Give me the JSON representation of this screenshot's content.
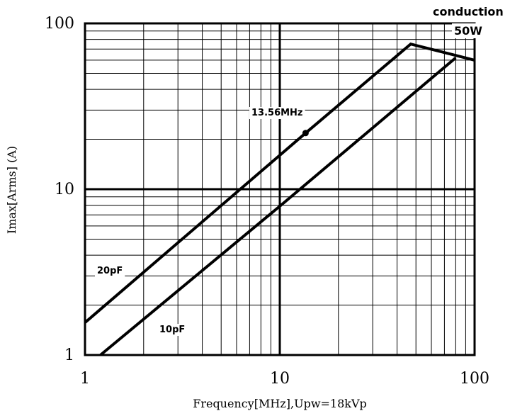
{
  "chart_data": {
    "type": "line",
    "xscale": "log",
    "yscale": "log",
    "xlim": [
      1,
      100
    ],
    "ylim": [
      1,
      100
    ],
    "xlabel": "Frequency[MHz],Upw=18kVp",
    "ylabel": "Imax[Arms] (A)",
    "x_ticks": [
      "1",
      "10",
      "100"
    ],
    "y_ticks": [
      "1",
      "10",
      "100"
    ],
    "grid": true,
    "series": [
      {
        "name": "20pF",
        "points": [
          [
            1,
            1.57
          ],
          [
            13.56,
            21.8
          ],
          [
            47,
            75
          ],
          [
            100,
            60
          ]
        ]
      },
      {
        "name": "10pF",
        "points": [
          [
            1.2,
            1.0
          ],
          [
            10,
            7.9
          ],
          [
            80,
            62
          ]
        ]
      }
    ],
    "annotations": [
      {
        "text": "13.56MHz",
        "x": 13.56,
        "y": 21.8
      },
      {
        "text": "conduction",
        "x": 75,
        "y": 115
      },
      {
        "text": "50W",
        "x": 84,
        "y": 84
      }
    ]
  }
}
